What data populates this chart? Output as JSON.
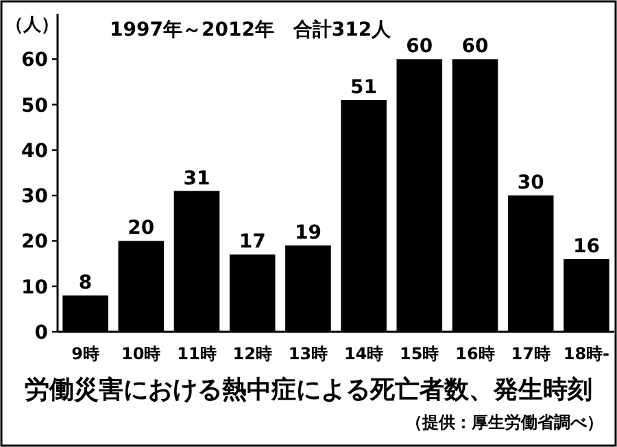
{
  "chart_data": {
    "type": "bar",
    "subtitle": "1997年～2012年　合計312人",
    "ylabel": "（人）",
    "title": "労働災害における熱中症による死亡者数、発生時刻",
    "annotations": [
      "（提供：厚生労働省調べ）"
    ],
    "categories": [
      "9時",
      "10時",
      "11時",
      "12時",
      "13時",
      "14時",
      "15時",
      "16時",
      "17時",
      "18時-"
    ],
    "values": [
      8,
      20,
      31,
      17,
      19,
      51,
      60,
      60,
      30,
      16
    ],
    "color": "#000000",
    "ylim": [
      0,
      70
    ],
    "yticks": [
      0,
      10,
      20,
      30,
      40,
      50,
      60
    ],
    "data_labels": true
  }
}
